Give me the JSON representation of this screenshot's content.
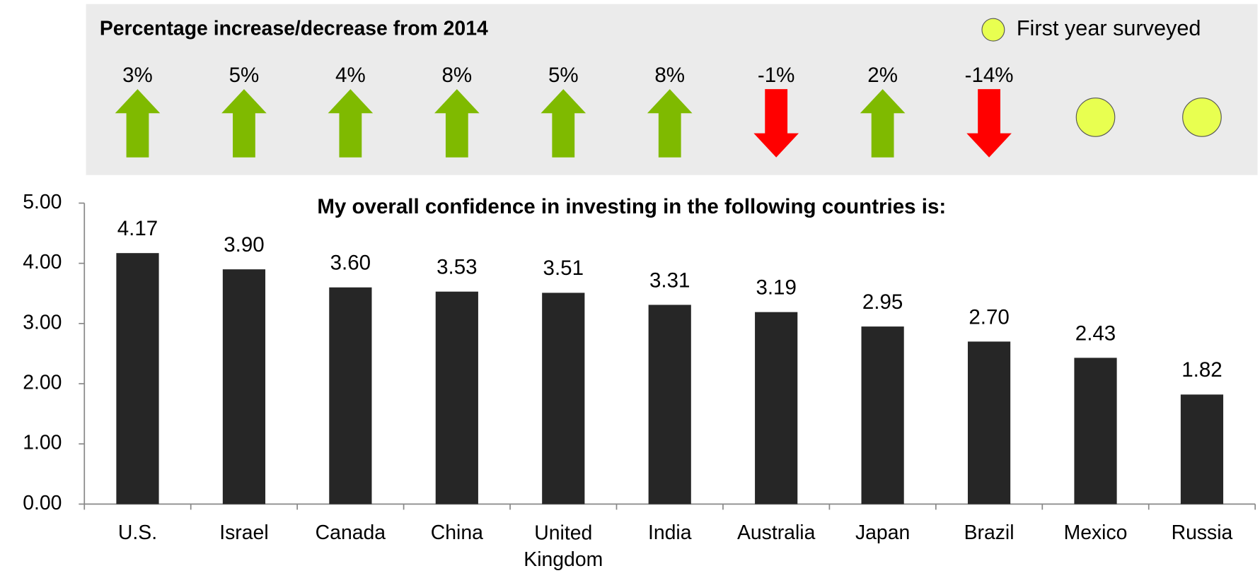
{
  "chart_data": {
    "type": "bar",
    "title": "My overall confidence in investing in the following countries is:",
    "categories": [
      "U.S.",
      "Israel",
      "Canada",
      "China",
      "United Kingdom",
      "India",
      "Australia",
      "Japan",
      "Brazil",
      "Mexico",
      "Russia"
    ],
    "values": [
      4.17,
      3.9,
      3.6,
      3.53,
      3.51,
      3.31,
      3.19,
      2.95,
      2.7,
      2.43,
      1.82
    ],
    "value_labels": [
      "4.17",
      "3.90",
      "3.60",
      "3.53",
      "3.51",
      "3.31",
      "3.19",
      "2.95",
      "2.70",
      "2.43",
      "1.82"
    ],
    "color": "#262626",
    "ylim": [
      0,
      5
    ],
    "yticks": [
      {
        "value": 0,
        "label": "0.00"
      },
      {
        "value": 1,
        "label": "1.00"
      },
      {
        "value": 2,
        "label": "2.00"
      },
      {
        "value": 3,
        "label": "3.00"
      },
      {
        "value": 4,
        "label": "4.00"
      },
      {
        "value": 5,
        "label": "5.00"
      }
    ],
    "change_panel": {
      "title": "Percentage increase/decrease from 2014",
      "values": [
        3,
        5,
        4,
        8,
        5,
        8,
        -1,
        2,
        -14,
        null,
        null
      ],
      "value_labels": [
        "3%",
        "5%",
        "4%",
        "8%",
        "5%",
        "8%",
        "-1%",
        "2%",
        "-14%",
        null,
        null
      ],
      "up_color": "#7fba00",
      "down_color": "#ff0000",
      "new_color": "#e8ff50",
      "legend": "First year surveyed"
    }
  }
}
